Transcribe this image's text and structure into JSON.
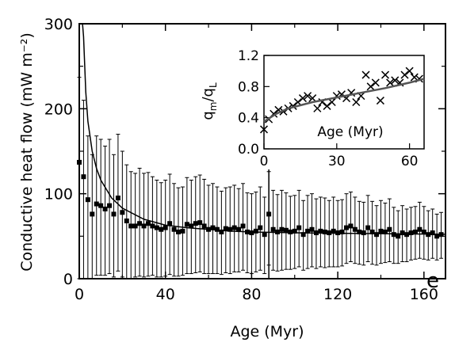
{
  "chart_data": [
    {
      "type": "scatter",
      "title": "",
      "xlabel": "Age (Myr)",
      "ylabel": "Conductive heat flow (mW m⁻²)",
      "xlim": [
        0,
        170
      ],
      "ylim": [
        0,
        300
      ],
      "xticks": [
        "0",
        "40",
        "80",
        "120",
        "160"
      ],
      "yticks": [
        "0",
        "100",
        "200",
        "300"
      ],
      "panel_label": "e",
      "series": [
        {
          "x": [
            0,
            2,
            4,
            6,
            8,
            10,
            12,
            14,
            16,
            18,
            20,
            22,
            24,
            26,
            28,
            30,
            32,
            34,
            36,
            38,
            40,
            42,
            44,
            46,
            48,
            50,
            52,
            54,
            56,
            58,
            60,
            62,
            64,
            66,
            68,
            70,
            72,
            74,
            76,
            78,
            80,
            82,
            84,
            86,
            88,
            90,
            92,
            94,
            96,
            98,
            100,
            102,
            104,
            106,
            108,
            110,
            112,
            114,
            116,
            118,
            120,
            122,
            124,
            126,
            128,
            130,
            132,
            134,
            136,
            138,
            140,
            142,
            144,
            146,
            148,
            150,
            152,
            154,
            156,
            158,
            160,
            162,
            164,
            166,
            168
          ],
          "y": [
            137,
            120,
            93,
            76,
            88,
            86,
            82,
            86,
            76,
            95,
            78,
            68,
            62,
            62,
            65,
            62,
            65,
            62,
            60,
            58,
            60,
            65,
            58,
            55,
            56,
            64,
            62,
            65,
            66,
            62,
            58,
            60,
            58,
            55,
            59,
            58,
            60,
            58,
            62,
            55,
            54,
            56,
            60,
            52,
            76,
            58,
            55,
            58,
            57,
            55,
            56,
            60,
            52,
            56,
            58,
            54,
            56,
            55,
            54,
            56,
            54,
            55,
            60,
            62,
            58,
            55,
            54,
            60,
            55,
            52,
            56,
            55,
            58,
            52,
            50,
            54,
            52,
            54,
            55,
            58,
            55,
            52,
            54,
            50,
            52
          ],
          "err_plus": [
            100,
            90,
            75,
            70,
            80,
            78,
            74,
            78,
            70,
            75,
            72,
            66,
            64,
            62,
            65,
            62,
            60,
            58,
            56,
            55,
            56,
            58,
            54,
            52,
            52,
            55,
            54,
            55,
            56,
            55,
            52,
            52,
            50,
            48,
            48,
            50,
            50,
            48,
            50,
            46,
            46,
            46,
            48,
            44,
            50,
            46,
            44,
            46,
            44,
            42,
            42,
            44,
            40,
            42,
            42,
            40,
            40,
            40,
            38,
            40,
            38,
            38,
            40,
            40,
            38,
            36,
            36,
            38,
            36,
            34,
            36,
            34,
            36,
            32,
            30,
            32,
            30,
            30,
            30,
            32,
            30,
            28,
            28,
            26,
            26
          ],
          "err_minus": [
            137,
            120,
            93,
            76,
            84,
            82,
            78,
            80,
            74,
            86,
            76,
            68,
            62,
            60,
            62,
            60,
            62,
            58,
            58,
            56,
            57,
            60,
            55,
            52,
            52,
            58,
            56,
            58,
            58,
            56,
            52,
            54,
            52,
            50,
            52,
            52,
            52,
            50,
            52,
            48,
            48,
            48,
            50,
            46,
            60,
            48,
            46,
            48,
            46,
            44,
            44,
            46,
            42,
            44,
            44,
            42,
            42,
            42,
            40,
            42,
            40,
            40,
            42,
            42,
            40,
            38,
            38,
            40,
            38,
            36,
            38,
            36,
            38,
            34,
            32,
            34,
            32,
            32,
            32,
            34,
            32,
            30,
            30,
            28,
            28
          ]
        },
        {
          "type": "line",
          "x": [
            1.5,
            2,
            3,
            4,
            6,
            8,
            10,
            15,
            20,
            30,
            40,
            50,
            60,
            70,
            80,
            90,
            100,
            120,
            140,
            160,
            170
          ],
          "y": [
            300,
            285,
            220,
            185,
            150,
            130,
            116,
            95,
            83,
            70,
            63,
            60,
            58,
            56,
            55,
            54.5,
            54,
            53.5,
            53,
            52.5,
            52.3
          ]
        }
      ]
    },
    {
      "type": "scatter",
      "xlabel": "Age (Myr)",
      "ylabel": "qₘ/qʟ",
      "ylabel_main": "q",
      "ylabel_sub1": "m",
      "ylabel_sep": "/q",
      "ylabel_sub2": "L",
      "xlim": [
        0,
        66
      ],
      "ylim": [
        0,
        1.2
      ],
      "xticks": [
        "0",
        "30",
        "60"
      ],
      "yticks": [
        "0.0",
        "0.4",
        "0.8",
        "1.2"
      ],
      "series": [
        {
          "x": [
            0,
            2,
            4,
            6,
            8,
            10,
            12,
            14,
            16,
            18,
            20,
            22,
            24,
            26,
            28,
            30,
            32,
            34,
            36,
            38,
            40,
            42,
            44,
            46,
            48,
            50,
            52,
            54,
            56,
            58,
            60,
            62,
            64
          ],
          "y": [
            0.25,
            0.38,
            0.45,
            0.5,
            0.48,
            0.52,
            0.55,
            0.6,
            0.65,
            0.68,
            0.65,
            0.52,
            0.6,
            0.55,
            0.6,
            0.68,
            0.7,
            0.65,
            0.72,
            0.6,
            0.68,
            0.95,
            0.8,
            0.85,
            0.62,
            0.95,
            0.85,
            0.88,
            0.85,
            0.95,
            1.0,
            0.92,
            0.9
          ]
        },
        {
          "type": "line",
          "x": [
            0,
            5,
            10,
            20,
            30,
            40,
            50,
            60,
            66
          ],
          "y": [
            0.35,
            0.45,
            0.52,
            0.6,
            0.66,
            0.72,
            0.78,
            0.85,
            0.9
          ]
        }
      ]
    }
  ]
}
